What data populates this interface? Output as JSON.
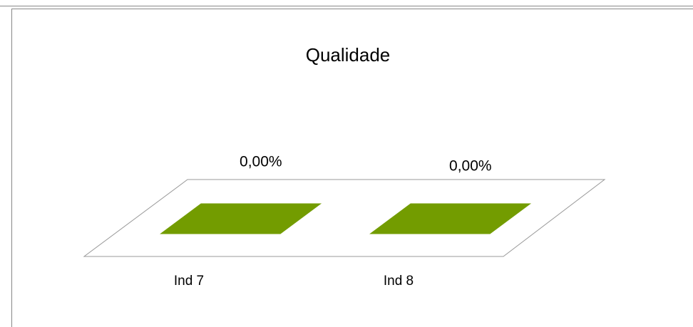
{
  "chart_data": {
    "type": "bar",
    "title": "Qualidade",
    "categories": [
      "Ind 7",
      "Ind 8"
    ],
    "values": [
      0,
      0
    ],
    "value_labels": [
      "0,00%",
      "0,00%"
    ],
    "color": "#739c00"
  }
}
